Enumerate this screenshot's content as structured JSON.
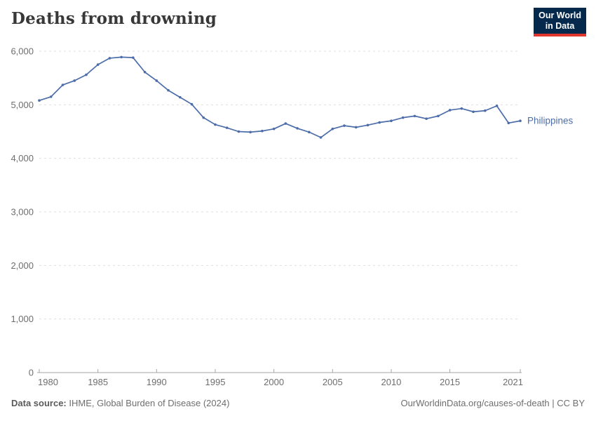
{
  "header": {
    "title": "Deaths from drowning",
    "logo": {
      "line1": "Our World",
      "line2": "in Data"
    }
  },
  "chart_data": {
    "type": "line",
    "title": "Deaths from drowning",
    "xlabel": "",
    "ylabel": "",
    "xlim": [
      1980,
      2021
    ],
    "ylim": [
      0,
      6000
    ],
    "x_ticks": [
      1980,
      1985,
      1990,
      1995,
      2000,
      2005,
      2010,
      2015,
      2021
    ],
    "y_ticks": [
      0,
      1000,
      2000,
      3000,
      4000,
      5000,
      6000
    ],
    "y_tick_labels": [
      "0",
      "1,000",
      "2,000",
      "3,000",
      "4,000",
      "5,000",
      "6,000"
    ],
    "grid": "horizontal-dashed",
    "legend_position": "line-end-label",
    "series": [
      {
        "name": "Philippines",
        "color": "#4c6da9",
        "x": [
          1980,
          1981,
          1982,
          1983,
          1984,
          1985,
          1986,
          1987,
          1988,
          1989,
          1990,
          1991,
          1992,
          1993,
          1994,
          1995,
          1996,
          1997,
          1998,
          1999,
          2000,
          2001,
          2002,
          2003,
          2004,
          2005,
          2006,
          2007,
          2008,
          2009,
          2010,
          2011,
          2012,
          2013,
          2014,
          2015,
          2016,
          2017,
          2018,
          2019,
          2020,
          2021
        ],
        "values": [
          5080,
          5150,
          5370,
          5450,
          5560,
          5750,
          5870,
          5890,
          5880,
          5610,
          5450,
          5270,
          5140,
          5010,
          4760,
          4630,
          4570,
          4500,
          4490,
          4510,
          4550,
          4650,
          4560,
          4490,
          4390,
          4550,
          4610,
          4580,
          4620,
          4670,
          4700,
          4760,
          4790,
          4740,
          4790,
          4900,
          4930,
          4870,
          4890,
          4980,
          4660,
          4700
        ]
      }
    ]
  },
  "footer": {
    "data_source_label": "Data source:",
    "data_source_value": "IHME, Global Burden of Disease (2024)",
    "attribution": "OurWorldinData.org/causes-of-death | CC BY"
  },
  "colors": {
    "series": "#4c6da9",
    "title": "#383838",
    "tick_label": "#6e6e6e",
    "gridline": "#dedede",
    "axis": "#a5a5a5",
    "logo_bg": "#05294d",
    "logo_accent": "#e0362d",
    "footer_text": "#6e6e6e"
  }
}
